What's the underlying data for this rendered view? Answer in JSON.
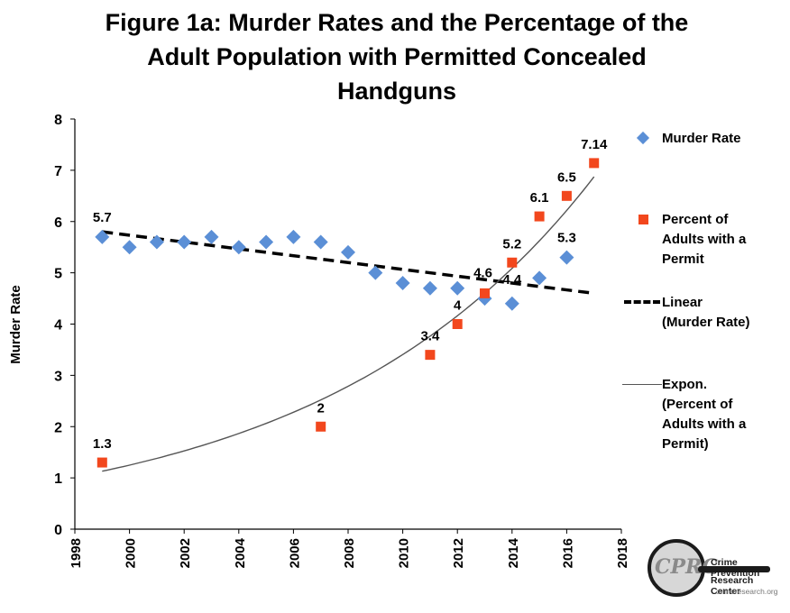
{
  "chart_data": {
    "type": "scatter",
    "title_lines": [
      "Figure 1a: Murder Rates and the Percentage of the",
      "Adult Population with Permitted Concealed",
      "Handguns"
    ],
    "ylabel": "Murder Rate",
    "xlabel": "",
    "xlim": [
      1998,
      2018
    ],
    "ylim": [
      0,
      8
    ],
    "x_ticks": [
      1998,
      2000,
      2002,
      2004,
      2006,
      2008,
      2010,
      2012,
      2014,
      2016,
      2018
    ],
    "y_ticks": [
      0,
      1,
      2,
      3,
      4,
      5,
      6,
      7,
      8
    ],
    "series": [
      {
        "name": "Murder Rate",
        "marker": "diamond",
        "color": "#5b8fd6",
        "x": [
          1999,
          2000,
          2001,
          2002,
          2003,
          2004,
          2005,
          2006,
          2007,
          2008,
          2009,
          2010,
          2011,
          2012,
          2013,
          2014,
          2015,
          2016
        ],
        "y": [
          5.7,
          5.5,
          5.6,
          5.6,
          5.7,
          5.5,
          5.6,
          5.7,
          5.6,
          5.4,
          5.0,
          4.8,
          4.7,
          4.7,
          4.5,
          4.4,
          4.9,
          5.3
        ],
        "data_labels": [
          {
            "x": 1999,
            "y": 5.7,
            "text": "5.7"
          },
          {
            "x": 2014,
            "y": 4.4,
            "text": "4.4"
          },
          {
            "x": 2016,
            "y": 5.3,
            "text": "5.3"
          }
        ]
      },
      {
        "name": "Percent of Adults with a Permit",
        "marker": "square",
        "color": "#f2471d",
        "x": [
          1999,
          2007,
          2011,
          2012,
          2013,
          2014,
          2015,
          2016,
          2017
        ],
        "y": [
          1.3,
          2.0,
          3.4,
          4.0,
          4.6,
          5.2,
          6.1,
          6.5,
          7.14
        ],
        "data_labels": [
          {
            "x": 1999,
            "y": 1.3,
            "text": "1.3"
          },
          {
            "x": 2007,
            "y": 2.0,
            "text": "2"
          },
          {
            "x": 2011,
            "y": 3.4,
            "text": "3.4"
          },
          {
            "x": 2012,
            "y": 4.0,
            "text": "4"
          },
          {
            "x": 2013,
            "y": 4.6,
            "text": "4.6"
          },
          {
            "x": 2014,
            "y": 5.2,
            "text": "5.2"
          },
          {
            "x": 2015,
            "y": 6.1,
            "text": "6.1"
          },
          {
            "x": 2016,
            "y": 6.5,
            "text": "6.5"
          },
          {
            "x": 2017,
            "y": 7.14,
            "text": "7.14"
          }
        ]
      }
    ],
    "trendlines": [
      {
        "name": "Linear (Murder Rate)",
        "kind": "linear",
        "style": "dashed",
        "x": [
          1999,
          2017
        ],
        "y": [
          5.8,
          4.6
        ]
      },
      {
        "name": "Expon. (Percent of Adults with a Permit)",
        "kind": "exponential",
        "style": "solid",
        "x_start": 1999,
        "x_end": 2017,
        "a": 1.13,
        "b": 0.1003
      }
    ],
    "legend": {
      "position": "right",
      "entries": [
        {
          "lines": [
            "Murder Rate"
          ]
        },
        {
          "lines": [
            "Percent of",
            "Adults with a",
            "Permit"
          ]
        },
        {
          "lines": [
            "Linear",
            "(Murder Rate)"
          ]
        },
        {
          "lines": [
            "Expon.",
            "(Percent of",
            "Adults with a",
            "Permit)"
          ]
        }
      ]
    },
    "colors": {
      "murder": "#5b8fd6",
      "permit": "#f2471d",
      "linear": "#000000",
      "expon": "#555555"
    }
  },
  "logo": {
    "initials": "CPRC",
    "line1": "Crime Prevention",
    "line2": "Research Center",
    "url_text": "crimeresearch.org"
  }
}
